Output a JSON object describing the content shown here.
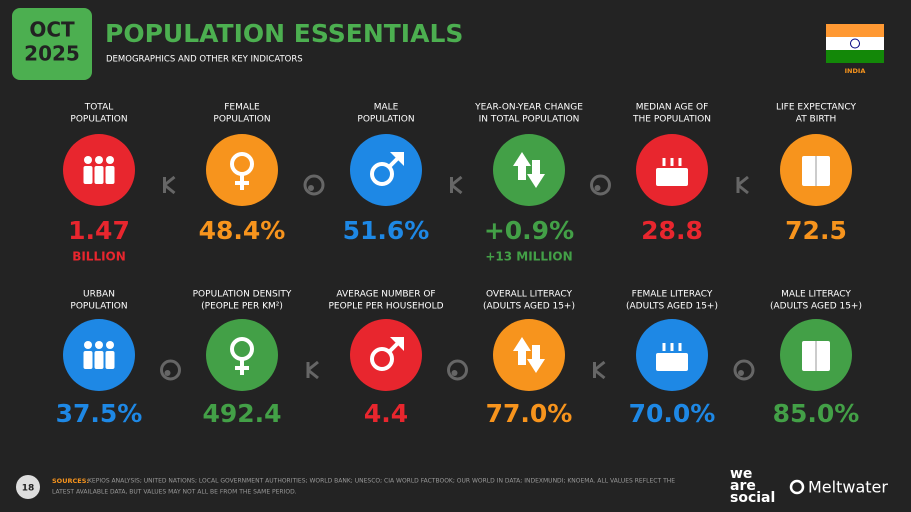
{
  "header": {
    "month": "OCT",
    "year": "2025",
    "title": "POPULATION ESSENTIALS",
    "subtitle": "DEMOGRAPHICS AND OTHER KEY INDICATORS",
    "country": "INDIA"
  },
  "tiles": [
    {
      "label": [
        "TOTAL",
        "POPULATION"
      ],
      "value": "1.47",
      "sublabel": "BILLION",
      "color": "#e8262e"
    },
    {
      "label": [
        "FEMALE",
        "POPULATION"
      ],
      "value": "48.4%",
      "color": "#f7941d"
    },
    {
      "label": [
        "MALE",
        "POPULATION"
      ],
      "value": "51.6%",
      "color": "#1e88e5"
    },
    {
      "label": [
        "YEAR-ON-YEAR CHANGE",
        "IN TOTAL POPULATION"
      ],
      "value": "+0.9%",
      "sublabel": "+13 MILLION",
      "color": "#43a047"
    },
    {
      "label": [
        "MEDIAN AGE OF",
        "THE POPULATION"
      ],
      "value": "28.8",
      "color": "#e8262e"
    },
    {
      "label": [
        "LIFE EXPECTANCY",
        "AT BIRTH"
      ],
      "value": "72.5",
      "color": "#f7941d"
    },
    {
      "label": [
        "URBAN",
        "POPULATION"
      ],
      "value": "37.5%",
      "color": "#1e88e5"
    },
    {
      "label": [
        "POPULATION DENSITY",
        "(PEOPLE PER KM²)"
      ],
      "value": "492.4",
      "color": "#43a047"
    },
    {
      "label": [
        "AVERAGE NUMBER OF",
        "PEOPLE PER HOUSEHOLD"
      ],
      "value": "4.4",
      "color": "#e8262e"
    },
    {
      "label": [
        "OVERALL LITERACY",
        "(ADULTS AGED 15+)"
      ],
      "value": "77.0%",
      "color": "#f7941d"
    },
    {
      "label": [
        "FEMALE LITERACY",
        "(ADULTS AGED 15+)"
      ],
      "value": "70.0%",
      "color": "#1e88e5"
    },
    {
      "label": [
        "MALE LITERACY",
        "(ADULTS AGED 15+)"
      ],
      "value": "85.0%",
      "color": "#43a047"
    }
  ],
  "footer": {
    "page": "18",
    "sources_label": "SOURCES:",
    "sources": [
      "KEPIOS ANALYSIS; UNITED NATIONS; LOCAL GOVERNMENT AUTHORITIES; WORLD BANK; UNESCO; CIA WORLD FACTBOOK; OUR WORLD IN DATA; INDEXMUNDI; KNOEMA. ALL VALUES REFLECT THE",
      "LATEST AVAILABLE DATA, BUT VALUES MAY NOT ALL BE FROM THE SAME PERIOD."
    ],
    "brand1": [
      "we",
      "are",
      "social"
    ],
    "brand2": "Meltwater"
  }
}
